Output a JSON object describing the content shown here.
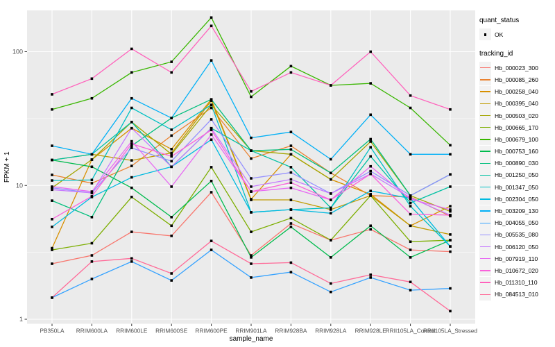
{
  "chart_data": {
    "type": "line",
    "title": "",
    "xlabel": "sample_name",
    "ylabel": "FPKM + 1",
    "y_scale": "log10",
    "y_ticks": [
      "1",
      "10",
      "100"
    ],
    "y_tick_values": [
      1,
      10,
      100
    ],
    "y_minor_values": [
      3.1623,
      31.623
    ],
    "ylim": [
      0.93,
      205
    ],
    "grid": true,
    "legend_position": "right",
    "panel_bg": "#EBEBEB",
    "grid_color": "#FFFFFF",
    "point_color": "#000000",
    "categories": [
      "PB350LA",
      "RRIM600LA",
      "RRIM600LE",
      "RRIM600SE",
      "RRIM600PE",
      "RRIM901LA",
      "RRIM928BA",
      "RRIM928LA",
      "RRIM928LE",
      "RRII105LA_Control",
      "RRII105LA_Stressed"
    ],
    "series": [
      {
        "name": "Hb_000023_300",
        "color": "#F8766D",
        "values": [
          2.6,
          3.0,
          4.5,
          4.2,
          8.9,
          3.0,
          5.2,
          3.9,
          4.7,
          3.3,
          3.2
        ]
      },
      {
        "name": "Hb_000085_260",
        "color": "#EA8331",
        "values": [
          12.0,
          10.4,
          14.0,
          23.6,
          38.0,
          15.9,
          19.8,
          12.4,
          8.4,
          8.2,
          5.9
        ]
      },
      {
        "name": "Hb_000258_040",
        "color": "#D89000",
        "values": [
          3.4,
          15.6,
          26.8,
          18.7,
          44.0,
          7.9,
          17.1,
          11.1,
          8.6,
          5.0,
          7.0
        ]
      },
      {
        "name": "Hb_000395_040",
        "color": "#C09B00",
        "values": [
          15.5,
          17.1,
          15.4,
          17.5,
          43.0,
          7.8,
          7.8,
          6.6,
          8.4,
          5.0,
          4.3
        ]
      },
      {
        "name": "Hb_000503_020",
        "color": "#A3A500",
        "values": [
          9.6,
          15.6,
          29.8,
          17.1,
          40.0,
          18.2,
          17.1,
          11.1,
          21.3,
          8.4,
          6.4
        ]
      },
      {
        "name": "Hb_000665_170",
        "color": "#7CAE00",
        "values": [
          3.3,
          3.7,
          8.2,
          5.0,
          13.7,
          4.5,
          5.7,
          3.9,
          8.4,
          3.8,
          3.9
        ]
      },
      {
        "name": "Hb_000679_100",
        "color": "#39B600",
        "values": [
          37.0,
          44.8,
          70.0,
          84.0,
          180.0,
          46.0,
          78.0,
          56.0,
          58.0,
          38.0,
          20.0
        ]
      },
      {
        "name": "Hb_000753_160",
        "color": "#00BB4E",
        "values": [
          15.5,
          13.8,
          9.6,
          5.8,
          10.8,
          2.9,
          4.9,
          2.9,
          5.0,
          2.9,
          3.9
        ]
      },
      {
        "name": "Hb_000890_030",
        "color": "#00BF7D",
        "values": [
          7.7,
          5.8,
          19.8,
          31.9,
          44.0,
          18.2,
          18.6,
          12.4,
          22.2,
          8.4,
          12.1
        ]
      },
      {
        "name": "Hb_001250_050",
        "color": "#00C1A3",
        "values": [
          15.5,
          17.1,
          29.8,
          13.8,
          26.8,
          18.2,
          13.7,
          6.8,
          16.5,
          7.4,
          9.8
        ]
      },
      {
        "name": "Hb_001347_050",
        "color": "#00C0C4",
        "values": [
          10.9,
          11.0,
          38.0,
          26.1,
          40.0,
          6.3,
          6.6,
          6.8,
          19.3,
          7.0,
          3.5
        ]
      },
      {
        "name": "Hb_002304_050",
        "color": "#00BAE0",
        "values": [
          4.9,
          8.2,
          11.5,
          13.8,
          22.0,
          6.3,
          6.6,
          6.2,
          9.1,
          8.0,
          3.5
        ]
      },
      {
        "name": "Hb_003209_130",
        "color": "#00B0F6",
        "values": [
          19.8,
          17.1,
          44.8,
          31.9,
          86.0,
          22.7,
          25.1,
          15.7,
          33.8,
          17.1,
          17.1
        ]
      },
      {
        "name": "Hb_004055_050",
        "color": "#35A2FF",
        "values": [
          1.45,
          2.0,
          2.7,
          1.95,
          3.3,
          2.05,
          2.25,
          1.6,
          2.05,
          1.65,
          1.7
        ]
      },
      {
        "name": "Hb_005535_080",
        "color": "#9590FF",
        "values": [
          9.6,
          8.8,
          19.1,
          15.2,
          31.2,
          11.3,
          12.5,
          8.7,
          12.8,
          8.4,
          12.1
        ]
      },
      {
        "name": "Hb_006120_050",
        "color": "#C77CFF",
        "values": [
          9.3,
          8.8,
          26.8,
          13.8,
          26.8,
          9.8,
          11.1,
          8.7,
          12.2,
          8.1,
          6.0
        ]
      },
      {
        "name": "Hb_007919_110",
        "color": "#E76BF3",
        "values": [
          9.8,
          9.0,
          21.4,
          9.8,
          24.0,
          9.0,
          9.6,
          7.8,
          13.9,
          7.9,
          6.6
        ]
      },
      {
        "name": "Hb_010672_020",
        "color": "#FA62DB",
        "values": [
          5.6,
          8.3,
          20.5,
          16.5,
          26.0,
          9.0,
          10.5,
          7.8,
          12.2,
          6.1,
          6.0
        ]
      },
      {
        "name": "Hb_011310_110",
        "color": "#FF62BC",
        "values": [
          48.0,
          62.9,
          105.0,
          70.0,
          156.0,
          50.5,
          70.0,
          56.0,
          100.0,
          47.0,
          37.0
        ]
      },
      {
        "name": "Hb_084513_010",
        "color": "#FF6A98",
        "values": [
          1.45,
          2.7,
          2.85,
          2.2,
          3.85,
          2.6,
          2.65,
          1.85,
          2.15,
          1.9,
          1.15
        ]
      }
    ]
  },
  "legend": {
    "quant_status_title": "quant_status",
    "quant_status_items": [
      {
        "label": "OK"
      }
    ],
    "tracking_id_title": "tracking_id"
  }
}
